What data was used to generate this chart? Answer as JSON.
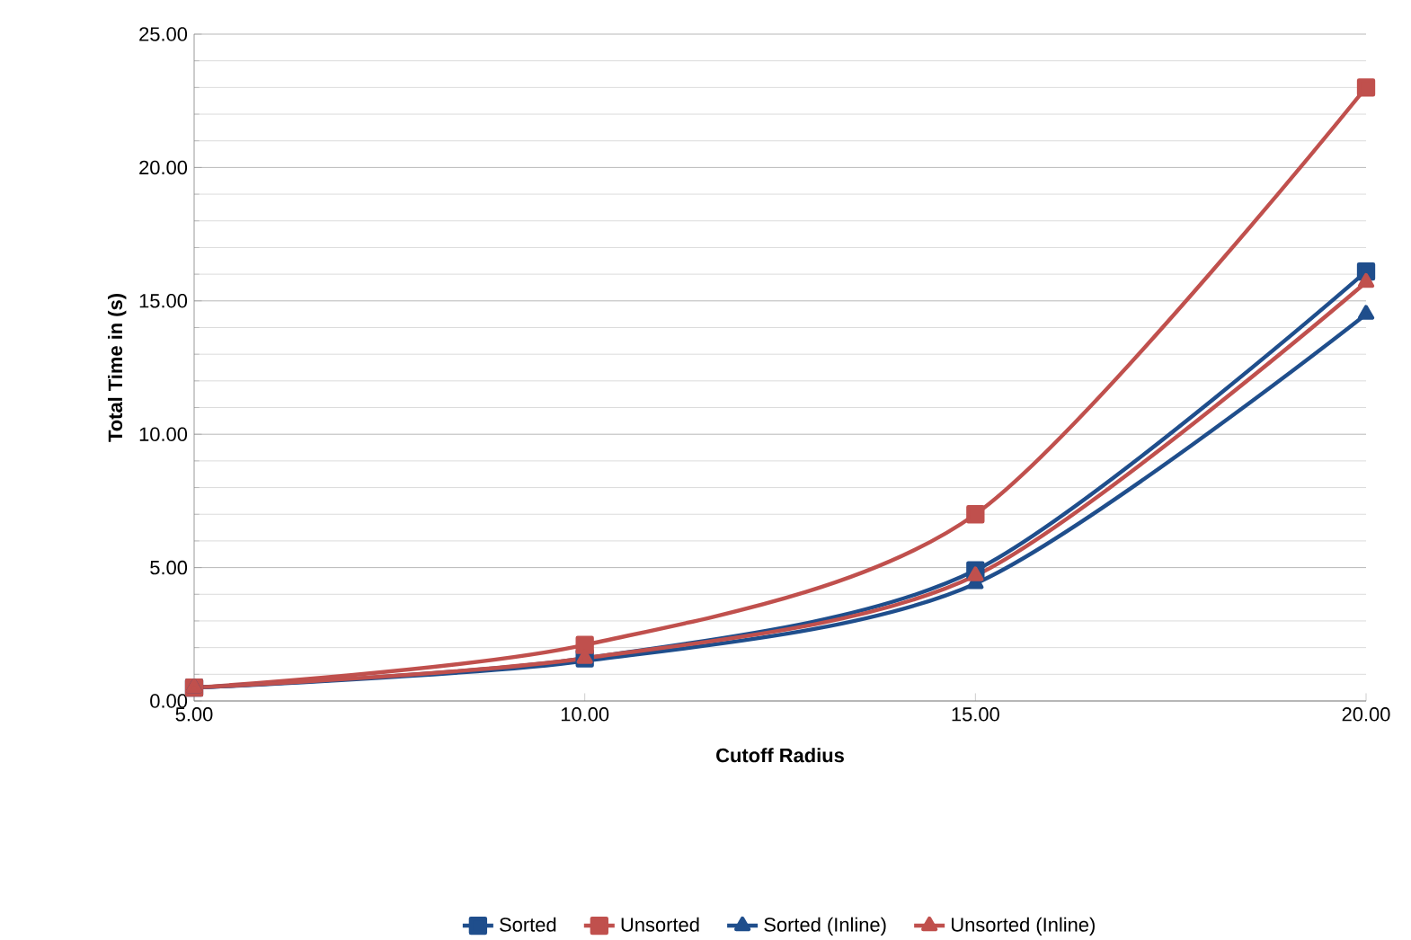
{
  "chart_data": {
    "type": "line",
    "xlabel": "Cutoff Radius",
    "ylabel": "Total Time in (s)",
    "x": [
      5,
      10,
      15,
      20
    ],
    "series": [
      {
        "name": "Sorted",
        "color": "#1f4e8c",
        "marker": "square",
        "values": [
          0.5,
          1.6,
          4.9,
          16.1
        ]
      },
      {
        "name": "Unsorted",
        "color": "#c0504d",
        "marker": "square",
        "values": [
          0.5,
          2.1,
          7.0,
          23.0
        ]
      },
      {
        "name": "Sorted (Inline)",
        "color": "#1f4e8c",
        "marker": "triangle",
        "values": [
          0.5,
          1.5,
          4.4,
          14.5
        ]
      },
      {
        "name": "Unsorted (Inline)",
        "color": "#c0504d",
        "marker": "triangle",
        "values": [
          0.5,
          1.6,
          4.7,
          15.7
        ]
      }
    ],
    "xlim": [
      5,
      20
    ],
    "xticks": [
      {
        "value": 5,
        "label": "5.00"
      },
      {
        "value": 10,
        "label": "10.00"
      },
      {
        "value": 15,
        "label": "15.00"
      },
      {
        "value": 20,
        "label": "20.00"
      }
    ],
    "ylim": [
      0,
      25
    ],
    "yticks": [
      {
        "value": 0,
        "label": "0.00"
      },
      {
        "value": 5,
        "label": "5.00"
      },
      {
        "value": 10,
        "label": "10.00"
      },
      {
        "value": 15,
        "label": "15.00"
      },
      {
        "value": 20,
        "label": "20.00"
      },
      {
        "value": 25,
        "label": "25.00"
      }
    ],
    "grid": "y",
    "legend": "bottom",
    "line_style": "solid"
  }
}
